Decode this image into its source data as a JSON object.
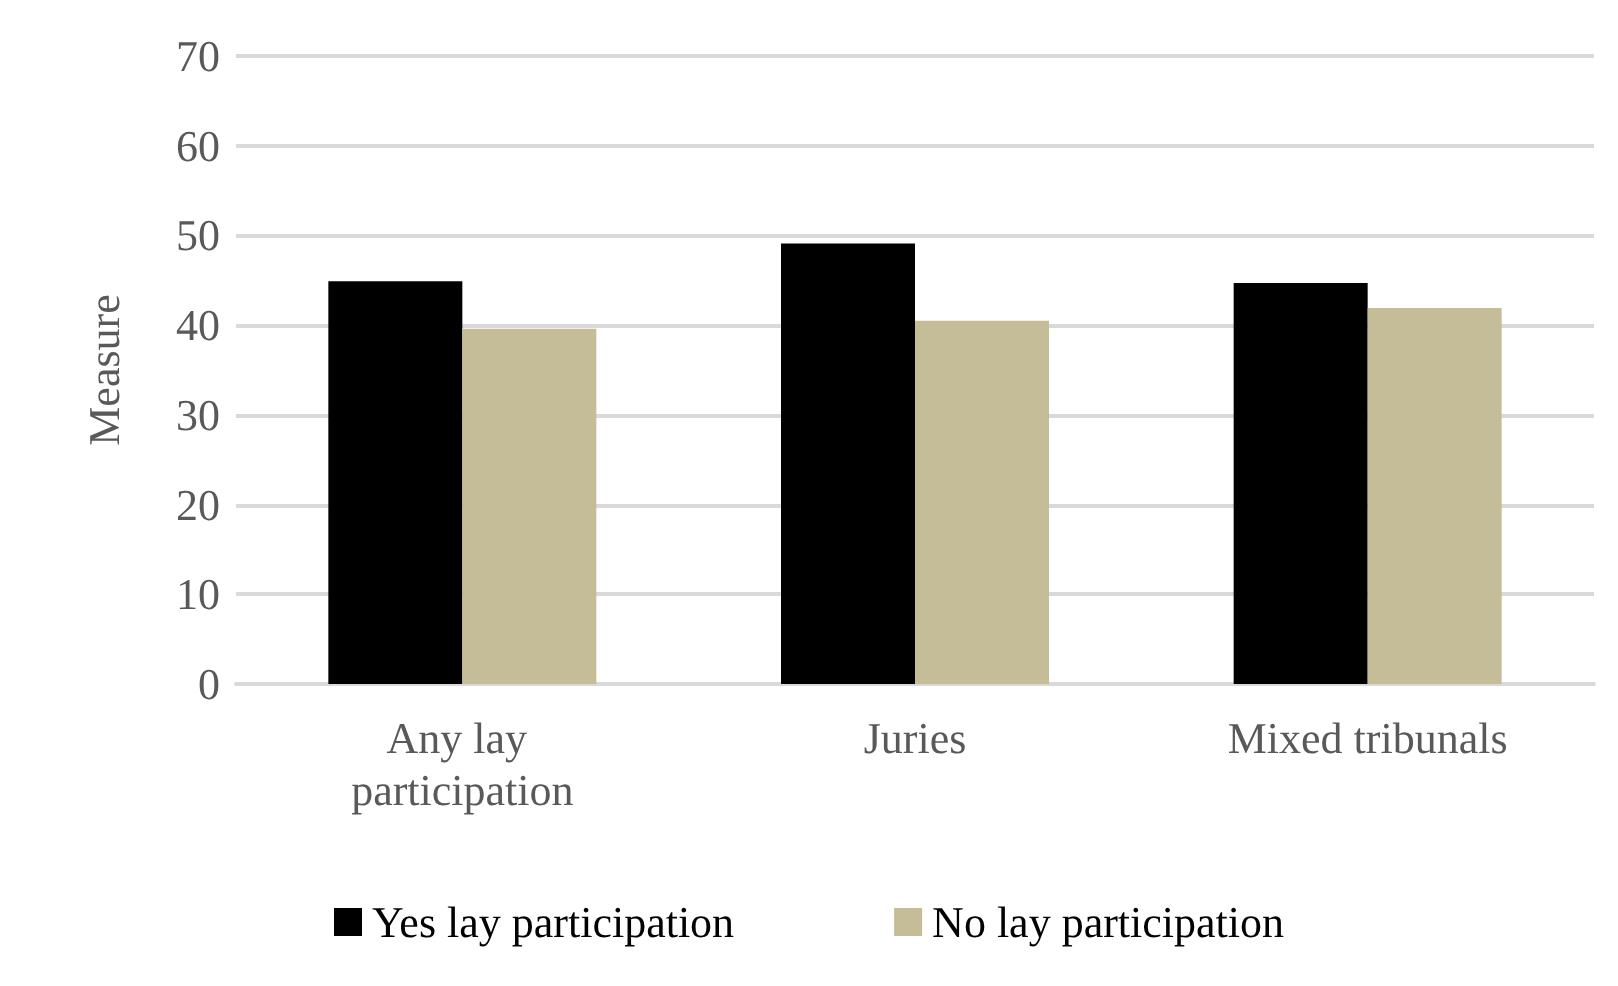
{
  "chart_data": {
    "type": "bar",
    "ylabel": "Measure",
    "categories": [
      "Any lay participation",
      "Juries",
      "Mixed tribunals"
    ],
    "series": [
      {
        "name": "Yes lay participation",
        "color": "#000000",
        "values": [
          44.9,
          49.1,
          44.7
        ]
      },
      {
        "name": "No lay participation",
        "color": "#c4bd97",
        "values": [
          39.6,
          40.5,
          41.9
        ]
      }
    ],
    "ylim": [
      0,
      70
    ],
    "yticks": [
      0,
      10,
      20,
      30,
      40,
      50,
      60,
      70
    ],
    "grid": "y",
    "legend": "bottom"
  }
}
